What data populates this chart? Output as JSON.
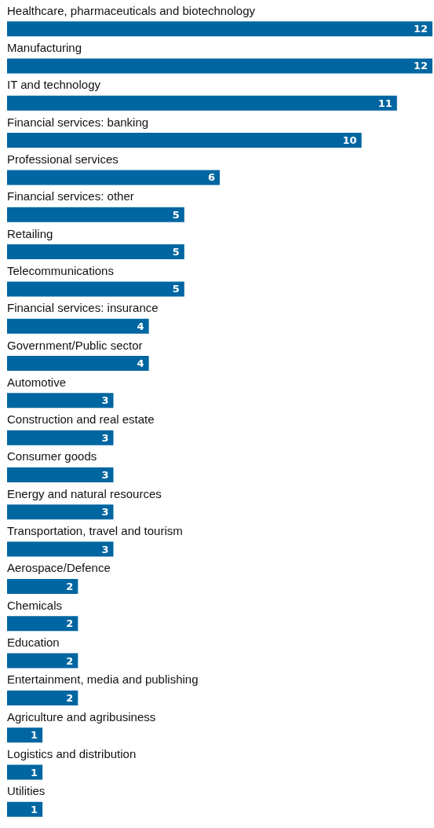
{
  "chart_data": {
    "type": "bar",
    "orientation": "horizontal",
    "data_labels": true,
    "color": "#0066a1",
    "categories": [
      "Healthcare, pharmaceuticals and biotechnology",
      "Manufacturing",
      "IT and technology",
      "Financial services: banking",
      "Professional services",
      "Financial services: other",
      "Retailing",
      "Telecommunications",
      "Financial services: insurance",
      "Government/Public sector",
      "Automotive",
      "Construction and real estate",
      "Consumer goods",
      "Energy and natural resources",
      "Transportation, travel and tourism",
      "Aerospace/Defence",
      "Chemicals",
      "Education",
      "Entertainment, media and publishing",
      "Agriculture and agribusiness",
      "Logistics and distribution",
      "Utilities"
    ],
    "values": [
      12,
      12,
      11,
      10,
      6,
      5,
      5,
      5,
      4,
      4,
      3,
      3,
      3,
      3,
      3,
      2,
      2,
      2,
      2,
      1,
      1,
      1
    ]
  }
}
